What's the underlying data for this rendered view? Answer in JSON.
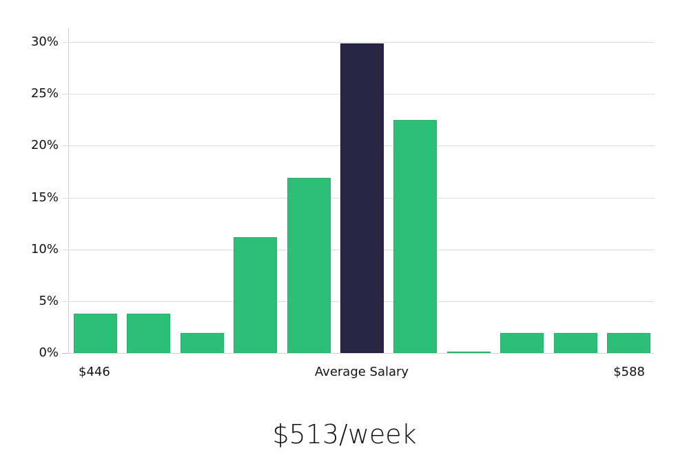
{
  "chart_data": {
    "type": "bar",
    "title": "",
    "xlabel": "Average Salary",
    "ylabel": "",
    "ylim": [
      0,
      30
    ],
    "yticks": [
      "0%",
      "5%",
      "10%",
      "15%",
      "20%",
      "25%",
      "30%"
    ],
    "grid": true,
    "x_range_labels": {
      "min": "$446",
      "center": "Average Salary",
      "max": "$588"
    },
    "categories": [
      "bin1",
      "bin2",
      "bin3",
      "bin4",
      "bin5",
      "bin6",
      "bin7",
      "bin8",
      "bin9",
      "bin10",
      "bin11"
    ],
    "values": [
      3.8,
      3.8,
      1.9,
      11.2,
      16.9,
      29.9,
      22.5,
      0.1,
      1.9,
      1.9,
      1.9
    ],
    "highlight_index": 5,
    "colors": {
      "bar": "#2bbf78",
      "highlight": "#292645",
      "grid": "#dcdcdc"
    },
    "legend": null
  },
  "labels": {
    "min_salary": "$446",
    "axis_title": "Average Salary",
    "max_salary": "$588",
    "average": "$513/week"
  }
}
